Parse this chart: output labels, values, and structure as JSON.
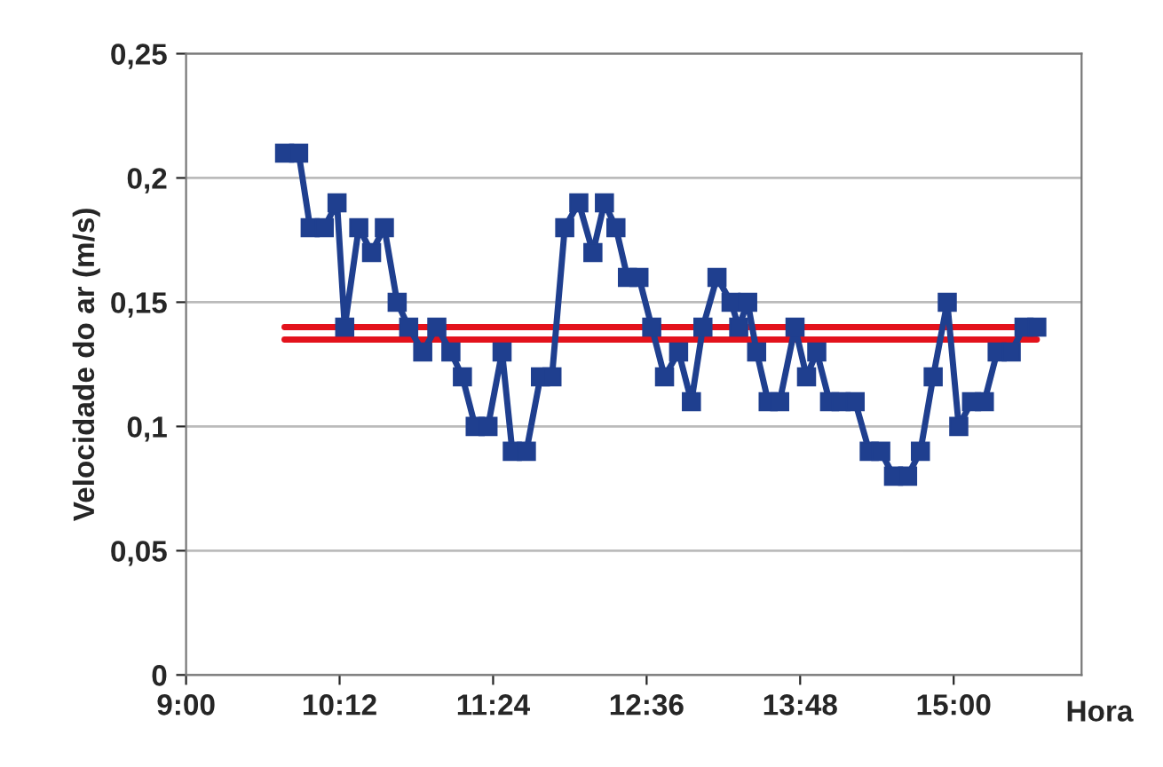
{
  "chart_data": {
    "type": "line",
    "xlabel": "Hora",
    "ylabel": "Velocidade do ar (m/s)",
    "xlim": [
      9,
      16
    ],
    "xticks": [
      {
        "value": 9,
        "label": "9:00"
      },
      {
        "value": 10.2,
        "label": "10:12"
      },
      {
        "value": 11.4,
        "label": "11:24"
      },
      {
        "value": 12.6,
        "label": "12:36"
      },
      {
        "value": 13.8,
        "label": "13:48"
      },
      {
        "value": 15,
        "label": "15:00"
      }
    ],
    "ylim": [
      0,
      0.25
    ],
    "yticks": [
      0,
      {
        "value": 0.05,
        "label": "0,05"
      },
      {
        "value": 0.1,
        "label": "0,1"
      },
      {
        "value": 0.15,
        "label": "0,15"
      },
      {
        "value": 0.2,
        "label": "0,2"
      },
      {
        "value": 0.25,
        "label": "0,25"
      }
    ],
    "grid": "y",
    "series": [
      {
        "color": "#e3121c",
        "marker": "none",
        "x": [
          9.77,
          15.65
        ],
        "values": [
          0.14,
          0.14
        ]
      },
      {
        "color": "#e3121c",
        "marker": "none",
        "x": [
          9.77,
          15.65
        ],
        "values": [
          0.135,
          0.135
        ]
      },
      {
        "color": "#1f3f8f",
        "marker": "square",
        "x": [
          9.77,
          9.88,
          9.97,
          10.08,
          10.18,
          10.24,
          10.35,
          10.45,
          10.55,
          10.65,
          10.74,
          10.85,
          10.96,
          11.07,
          11.16,
          11.26,
          11.36,
          11.47,
          11.55,
          11.66,
          11.77,
          11.86,
          11.96,
          12.07,
          12.18,
          12.27,
          12.36,
          12.45,
          12.54,
          12.64,
          12.74,
          12.85,
          12.95,
          13.04,
          13.15,
          13.26,
          13.32,
          13.39,
          13.46,
          13.55,
          13.64,
          13.76,
          13.85,
          13.93,
          14.03,
          14.12,
          14.23,
          14.34,
          14.43,
          14.53,
          14.64,
          14.74,
          14.84,
          14.95,
          15.04,
          15.14,
          15.24,
          15.34,
          15.45,
          15.55,
          15.65
        ],
        "values": [
          0.21,
          0.21,
          0.18,
          0.18,
          0.19,
          0.14,
          0.18,
          0.17,
          0.18,
          0.15,
          0.14,
          0.13,
          0.14,
          0.13,
          0.12,
          0.1,
          0.1,
          0.13,
          0.09,
          0.09,
          0.12,
          0.12,
          0.18,
          0.19,
          0.17,
          0.19,
          0.18,
          0.16,
          0.16,
          0.14,
          0.12,
          0.13,
          0.11,
          0.14,
          0.16,
          0.15,
          0.14,
          0.15,
          0.13,
          0.11,
          0.11,
          0.14,
          0.12,
          0.13,
          0.11,
          0.11,
          0.11,
          0.09,
          0.09,
          0.08,
          0.08,
          0.09,
          0.12,
          0.15,
          0.1,
          0.11,
          0.11,
          0.13,
          0.13,
          0.14,
          0.14
        ]
      }
    ]
  }
}
